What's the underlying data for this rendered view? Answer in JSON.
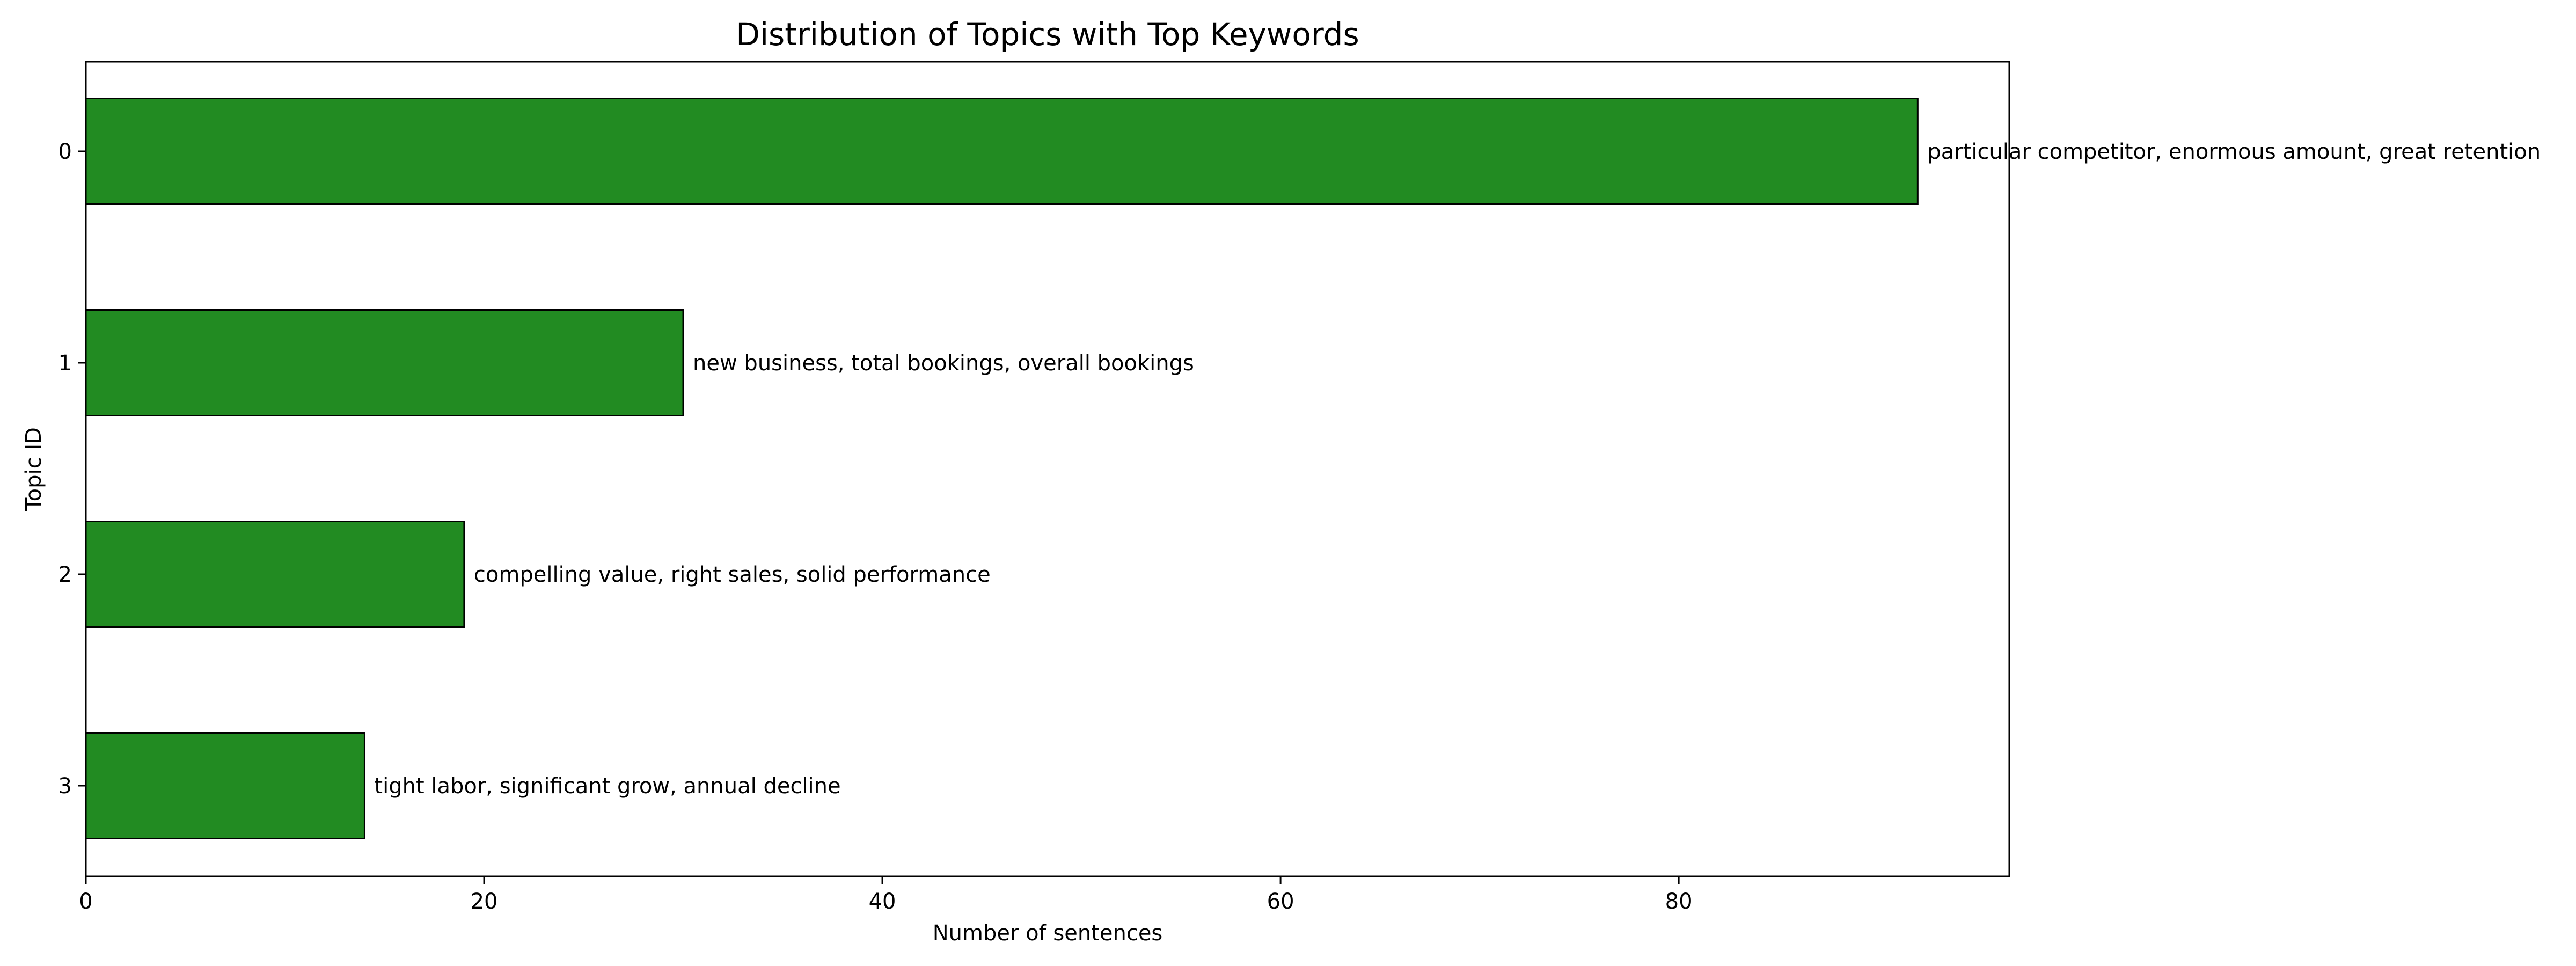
{
  "chart_data": {
    "type": "bar",
    "orientation": "horizontal",
    "title": "Distribution of Topics with Top Keywords",
    "xlabel": "Number of sentences",
    "ylabel": "Topic ID",
    "categories": [
      "0",
      "1",
      "2",
      "3"
    ],
    "values": [
      92,
      30,
      19,
      14
    ],
    "bar_labels": [
      "particular competitor, enormous amount, great retention",
      "new business, total bookings, overall bookings",
      "compelling value, right sales, solid performance",
      "tight labor, significant grow, annual decline"
    ],
    "xlim": [
      0,
      96.6
    ],
    "xticks": [
      0,
      20,
      40,
      60,
      80
    ],
    "grid": false,
    "legend": "none",
    "colors": {
      "bar": "#228B22",
      "edge": "#000000"
    }
  }
}
